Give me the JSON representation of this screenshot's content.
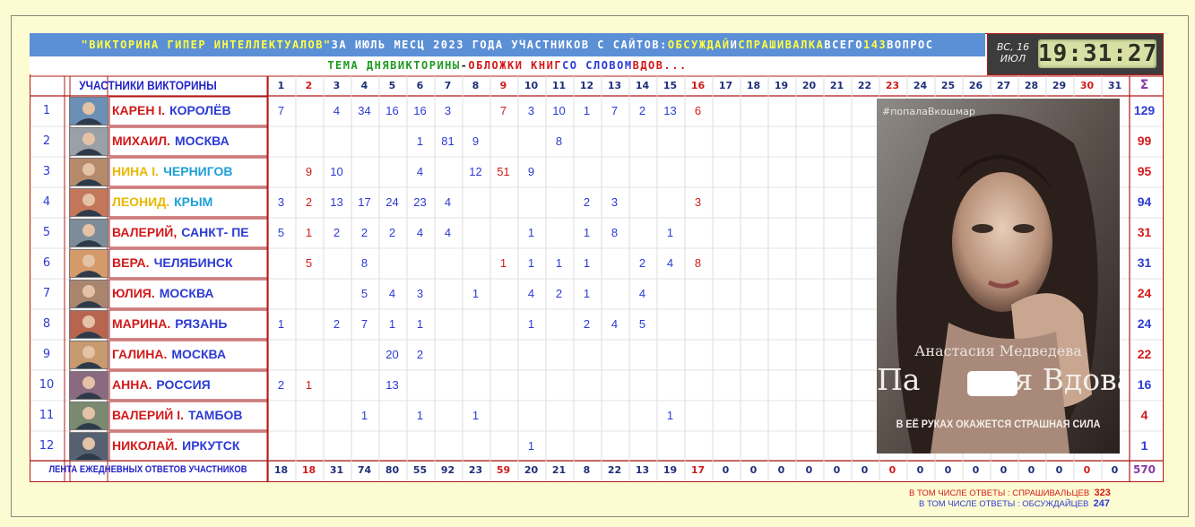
{
  "header": {
    "line1": {
      "quiz_name": "\"ВИКТОРИНА ГИПЕР ИНТЕЛЛЕКТУАЛОВ\"",
      "middle": " ЗА ИЮЛЬ МЕСЦ 2023 ГОДА УЧАСТНИКОВ С САЙТОВ: ",
      "site1": "ОБСУЖДАЙ",
      "and": " И ",
      "site2": "СПРАШИВАЛКА",
      "total_prefix": " ВСЕГО ",
      "total": "143",
      "total_suffix": " ВОПРОС"
    },
    "line2": {
      "p1": "ТЕМА ДНЯ ",
      "p2": "ВИКТОРИНЫ",
      "p3": " - ",
      "p4": "ОБЛОЖКИ КНИГ",
      "p5": " СО СЛОВОМ ",
      "p6": "ВДОВ..."
    }
  },
  "clock": {
    "day_of_week": "ВС, 16",
    "month": "ИЮЛ",
    "time": "19:31:27"
  },
  "table": {
    "participants_title": "УЧАСТНИКИ ВИКТОРИНЫ",
    "sum_symbol": "Σ",
    "days": [
      "1",
      "2",
      "3",
      "4",
      "5",
      "6",
      "7",
      "8",
      "9",
      "10",
      "11",
      "12",
      "13",
      "14",
      "15",
      "16",
      "17",
      "18",
      "19",
      "20",
      "21",
      "22",
      "23",
      "24",
      "25",
      "26",
      "27",
      "28",
      "29",
      "30",
      "31"
    ],
    "red_days": [
      2,
      9,
      16,
      23,
      30
    ],
    "rows": [
      {
        "n": "1",
        "name": "КАРЕН І.",
        "city": "КОРОЛЁВ",
        "name_color": "#d21a1a",
        "city_color": "#2c3bd4",
        "total": "129",
        "vals": {
          "1": "7",
          "3": "4",
          "4": "34",
          "5": "16",
          "6": "16",
          "7": "3",
          "9": "7",
          "10": "3",
          "11": "10",
          "12": "1",
          "13": "7",
          "14": "2",
          "15": "13",
          "16": "6"
        }
      },
      {
        "n": "2",
        "name": "МИХАИЛ.",
        "city": "МОСКВА",
        "name_color": "#d21a1a",
        "city_color": "#2c3bd4",
        "total": "99",
        "vals": {
          "6": "1",
          "7": "81",
          "8": "9",
          "11": "8"
        }
      },
      {
        "n": "3",
        "name": "НИНА І.",
        "city": "ЧЕРНИГОВ",
        "name_color": "#e8b700",
        "city_color": "#1ea0d8",
        "total": "95",
        "vals": {
          "2": "9",
          "3": "10",
          "6": "4",
          "8": "12",
          "9": "51",
          "10": "9"
        }
      },
      {
        "n": "4",
        "name": "ЛЕОНИД.",
        "city": "КРЫМ",
        "name_color": "#e8b700",
        "city_color": "#1ea0d8",
        "total": "94",
        "vals": {
          "1": "3",
          "2": "2",
          "3": "13",
          "4": "17",
          "5": "24",
          "6": "23",
          "7": "4",
          "12": "2",
          "13": "3",
          "16": "3"
        }
      },
      {
        "n": "5",
        "name": "ВАЛЕРИЙ,",
        "city": "САНКТ- ПЕ",
        "name_color": "#d21a1a",
        "city_color": "#2c3bd4",
        "total": "31",
        "vals": {
          "1": "5",
          "2": "1",
          "3": "2",
          "4": "2",
          "5": "2",
          "6": "4",
          "7": "4",
          "10": "1",
          "12": "1",
          "13": "8",
          "15": "1"
        }
      },
      {
        "n": "6",
        "name": "ВЕРА.",
        "city": "ЧЕЛЯБИНСК",
        "name_color": "#d21a1a",
        "city_color": "#2c3bd4",
        "total": "31",
        "vals": {
          "2": "5",
          "4": "8",
          "9": "1",
          "10": "1",
          "11": "1",
          "12": "1",
          "14": "2",
          "15": "4",
          "16": "8"
        }
      },
      {
        "n": "7",
        "name": "ЮЛИЯ.",
        "city": "МОСКВА",
        "name_color": "#d21a1a",
        "city_color": "#2c3bd4",
        "total": "24",
        "vals": {
          "4": "5",
          "5": "4",
          "6": "3",
          "8": "1",
          "10": "4",
          "11": "2",
          "12": "1",
          "14": "4"
        }
      },
      {
        "n": "8",
        "name": "МАРИНА.",
        "city": "РЯЗАНЬ",
        "name_color": "#d21a1a",
        "city_color": "#2c3bd4",
        "total": "24",
        "vals": {
          "1": "1",
          "3": "2",
          "4": "7",
          "5": "1",
          "6": "1",
          "10": "1",
          "12": "2",
          "13": "4",
          "14": "5"
        }
      },
      {
        "n": "9",
        "name": "ГАЛИНА.",
        "city": "МОСКВА",
        "name_color": "#d21a1a",
        "city_color": "#2c3bd4",
        "total": "22",
        "vals": {
          "5": "20",
          "6": "2"
        }
      },
      {
        "n": "10",
        "name": "АННА.",
        "city": "РОССИЯ",
        "name_color": "#d21a1a",
        "city_color": "#2c3bd4",
        "total": "16",
        "vals": {
          "1": "2",
          "2": "1",
          "5": "13"
        }
      },
      {
        "n": "11",
        "name": "ВАЛЕРИЙ І.",
        "city": "ТАМБОВ",
        "name_color": "#d21a1a",
        "city_color": "#2c3bd4",
        "total": "4",
        "vals": {
          "4": "1",
          "6": "1",
          "8": "1",
          "15": "1"
        }
      },
      {
        "n": "12",
        "name": "НИКОЛАЙ.",
        "city": "ИРКУТСК",
        "name_color": "#d21a1a",
        "city_color": "#2c3bd4",
        "total": "1",
        "vals": {
          "10": "1"
        }
      }
    ],
    "footer_label": "ЛЕНТА ЕЖЕДНЕВНЫХ ОТВЕТОВ УЧАСТНИКОВ",
    "daily_totals": [
      "18",
      "18",
      "31",
      "74",
      "80",
      "55",
      "92",
      "23",
      "59",
      "20",
      "21",
      "8",
      "22",
      "13",
      "19",
      "17",
      "0",
      "0",
      "0",
      "0",
      "0",
      "0",
      "0",
      "0",
      "0",
      "0",
      "0",
      "0",
      "0",
      "0",
      "0"
    ],
    "grand_total": "570"
  },
  "cover": {
    "tag": "#попалаВкошмар",
    "author": "Анастасия Медведева",
    "title": "Па          я Вдова",
    "subtitle": "В ЕЁ РУКАХ ОКАЖЕТСЯ СТРАШНАЯ СИЛА"
  },
  "summary": {
    "line1_label": "В ТОМ ЧИСЛЕ ОТВЕТЫ : СПРАШИВАЛЬЦЕВ",
    "line1_value": "323",
    "line2_label": "В ТОМ ЧИСЛЕ ОТВЕТЫ : ОБСУЖДАЙЦЕВ",
    "line2_value": "247"
  },
  "colors": {
    "accent_red": "#d21a1a",
    "accent_blue": "#2c3bd4",
    "header_bar": "#5b8fd6",
    "page_bg": "#fdfbd2"
  }
}
